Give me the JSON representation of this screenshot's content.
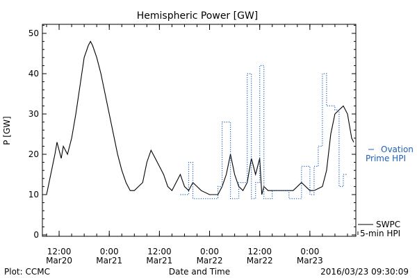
{
  "chart_data": {
    "type": "line",
    "title": "Hemispheric Power [GW]",
    "ylabel": "P [GW]",
    "xlabel": "Date and Time",
    "ylim": [
      0,
      53
    ],
    "xlim": [
      "2016-03-20 08:00",
      "2016-03-23 11:00"
    ],
    "yticks": [
      0,
      10,
      20,
      30,
      40,
      50
    ],
    "xticks": [
      {
        "time": "2016-03-20 12:00",
        "line1": "12:00",
        "line2": "Mar20"
      },
      {
        "time": "2016-03-21 00:00",
        "line1": "0:00",
        "line2": "Mar21"
      },
      {
        "time": "2016-03-21 12:00",
        "line1": "12:00",
        "line2": "Mar21"
      },
      {
        "time": "2016-03-22 00:00",
        "line1": "0:00",
        "line2": "Mar22"
      },
      {
        "time": "2016-03-22 12:00",
        "line1": "12:00",
        "line2": "Mar22"
      },
      {
        "time": "2016-03-23 00:00",
        "line1": "0:00",
        "line2": "Mar23"
      }
    ],
    "series": [
      {
        "name": "SWPC 5-min HPI",
        "style": "solid",
        "color": "#000000",
        "points": [
          [
            "2016-03-20 08:00",
            10
          ],
          [
            "2016-03-20 09:00",
            10
          ],
          [
            "2016-03-20 10:00",
            15
          ],
          [
            "2016-03-20 11:00",
            20
          ],
          [
            "2016-03-20 11:30",
            23
          ],
          [
            "2016-03-20 12:30",
            19
          ],
          [
            "2016-03-20 13:00",
            22
          ],
          [
            "2016-03-20 14:00",
            20
          ],
          [
            "2016-03-20 15:00",
            24
          ],
          [
            "2016-03-20 16:00",
            30
          ],
          [
            "2016-03-20 17:00",
            37
          ],
          [
            "2016-03-20 18:00",
            44
          ],
          [
            "2016-03-20 19:00",
            47
          ],
          [
            "2016-03-20 19:30",
            48
          ],
          [
            "2016-03-20 20:00",
            47
          ],
          [
            "2016-03-20 21:00",
            44
          ],
          [
            "2016-03-20 22:00",
            40
          ],
          [
            "2016-03-20 23:00",
            35
          ],
          [
            "2016-03-21 00:00",
            30
          ],
          [
            "2016-03-21 01:00",
            25
          ],
          [
            "2016-03-21 02:00",
            20
          ],
          [
            "2016-03-21 03:00",
            16
          ],
          [
            "2016-03-21 04:00",
            13
          ],
          [
            "2016-03-21 05:00",
            11
          ],
          [
            "2016-03-21 06:00",
            11
          ],
          [
            "2016-03-21 07:00",
            12
          ],
          [
            "2016-03-21 08:00",
            13
          ],
          [
            "2016-03-21 09:00",
            18
          ],
          [
            "2016-03-21 10:00",
            21
          ],
          [
            "2016-03-21 11:00",
            19
          ],
          [
            "2016-03-21 12:00",
            17
          ],
          [
            "2016-03-21 13:00",
            15
          ],
          [
            "2016-03-21 14:00",
            12
          ],
          [
            "2016-03-21 15:00",
            11
          ],
          [
            "2016-03-21 16:00",
            13
          ],
          [
            "2016-03-21 17:00",
            15
          ],
          [
            "2016-03-21 18:00",
            12
          ],
          [
            "2016-03-21 19:00",
            11
          ],
          [
            "2016-03-21 20:00",
            13
          ],
          [
            "2016-03-21 21:00",
            12
          ],
          [
            "2016-03-21 22:00",
            11
          ],
          [
            "2016-03-22 00:00",
            10
          ],
          [
            "2016-03-22 02:00",
            10
          ],
          [
            "2016-03-22 03:00",
            12
          ],
          [
            "2016-03-22 04:00",
            15
          ],
          [
            "2016-03-22 05:00",
            20
          ],
          [
            "2016-03-22 06:00",
            15
          ],
          [
            "2016-03-22 07:00",
            12
          ],
          [
            "2016-03-22 08:00",
            11
          ],
          [
            "2016-03-22 09:00",
            13
          ],
          [
            "2016-03-22 10:00",
            19
          ],
          [
            "2016-03-22 11:00",
            15
          ],
          [
            "2016-03-22 12:00",
            19
          ],
          [
            "2016-03-22 12:30",
            10
          ],
          [
            "2016-03-22 13:00",
            12
          ],
          [
            "2016-03-22 14:00",
            11
          ],
          [
            "2016-03-22 18:00",
            11
          ],
          [
            "2016-03-22 20:00",
            11
          ],
          [
            "2016-03-22 22:00",
            13
          ],
          [
            "2016-03-23 00:00",
            11
          ],
          [
            "2016-03-23 01:00",
            11
          ],
          [
            "2016-03-23 03:00",
            12
          ],
          [
            "2016-03-23 04:00",
            16
          ],
          [
            "2016-03-23 05:00",
            25
          ],
          [
            "2016-03-23 06:00",
            30
          ],
          [
            "2016-03-23 07:00",
            31
          ],
          [
            "2016-03-23 08:00",
            32
          ],
          [
            "2016-03-23 09:00",
            30
          ],
          [
            "2016-03-23 10:00",
            24
          ],
          [
            "2016-03-23 10:30",
            23
          ]
        ]
      },
      {
        "name": "Ovation Prime HPI",
        "style": "dotted",
        "color": "#1f5fb8",
        "points": [
          [
            "2016-03-21 17:00",
            10
          ],
          [
            "2016-03-21 19:00",
            10
          ],
          [
            "2016-03-21 19:00",
            18
          ],
          [
            "2016-03-21 20:00",
            18
          ],
          [
            "2016-03-21 20:00",
            9
          ],
          [
            "2016-03-22 02:00",
            9
          ],
          [
            "2016-03-22 02:00",
            12
          ],
          [
            "2016-03-22 03:00",
            12
          ],
          [
            "2016-03-22 03:00",
            28
          ],
          [
            "2016-03-22 05:00",
            28
          ],
          [
            "2016-03-22 05:00",
            9
          ],
          [
            "2016-03-22 07:00",
            9
          ],
          [
            "2016-03-22 07:00",
            13
          ],
          [
            "2016-03-22 09:00",
            13
          ],
          [
            "2016-03-22 09:00",
            40
          ],
          [
            "2016-03-22 10:00",
            40
          ],
          [
            "2016-03-22 10:00",
            9
          ],
          [
            "2016-03-22 11:00",
            9
          ],
          [
            "2016-03-22 11:00",
            13
          ],
          [
            "2016-03-22 12:00",
            13
          ],
          [
            "2016-03-22 12:00",
            42
          ],
          [
            "2016-03-22 13:00",
            42
          ],
          [
            "2016-03-22 13:00",
            9
          ],
          [
            "2016-03-22 15:00",
            9
          ],
          [
            "2016-03-22 15:00",
            11
          ],
          [
            "2016-03-22 19:00",
            11
          ],
          [
            "2016-03-22 19:00",
            9
          ],
          [
            "2016-03-22 22:00",
            9
          ],
          [
            "2016-03-22 22:00",
            17
          ],
          [
            "2016-03-23 00:00",
            17
          ],
          [
            "2016-03-23 00:00",
            10
          ],
          [
            "2016-03-23 01:00",
            10
          ],
          [
            "2016-03-23 01:00",
            17
          ],
          [
            "2016-03-23 02:00",
            17
          ],
          [
            "2016-03-23 02:00",
            22
          ],
          [
            "2016-03-23 03:00",
            22
          ],
          [
            "2016-03-23 03:00",
            40
          ],
          [
            "2016-03-23 04:00",
            40
          ],
          [
            "2016-03-23 04:00",
            32
          ],
          [
            "2016-03-23 06:00",
            32
          ],
          [
            "2016-03-23 06:00",
            31
          ],
          [
            "2016-03-23 07:00",
            31
          ],
          [
            "2016-03-23 07:00",
            12
          ],
          [
            "2016-03-23 08:00",
            12
          ],
          [
            "2016-03-23 08:00",
            15
          ],
          [
            "2016-03-23 09:00",
            15
          ]
        ]
      }
    ],
    "legend": {
      "ovation_line1": "Ovation",
      "ovation_line2": "Prime HPI",
      "swpc_line1": "SWPC",
      "swpc_line2": "5-min HPI"
    }
  },
  "footer": {
    "left": "Plot: CCMC",
    "right": "2016/03/23 09:30:09"
  }
}
